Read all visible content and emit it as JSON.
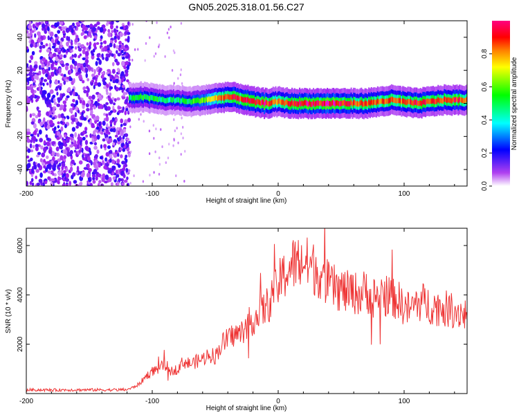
{
  "title": "GN05.2025.318.01.56.C27",
  "colors": {
    "snr_line": "#ee3333",
    "axis": "#000000",
    "background": "#ffffff"
  },
  "chart_data": [
    {
      "type": "heatmap",
      "xlabel": "Height of straight line (km)",
      "ylabel": "Frequency (Hz)",
      "xlim": [
        -200,
        150
      ],
      "ylim": [
        -50,
        50
      ],
      "xticks": [
        -200,
        -100,
        0,
        100
      ],
      "yticks": [
        -40,
        -20,
        0,
        20,
        40
      ],
      "colorbar": {
        "label": "Normalized spectral amplitude",
        "range": [
          0,
          1
        ],
        "ticks": [
          "0.0",
          "0.2",
          "0.4",
          "0.6",
          "0.8"
        ],
        "colormap": [
          "#ffffff",
          "#a020f0",
          "#0000ff",
          "#00ffff",
          "#00ff00",
          "#ffff00",
          "#ff8000",
          "#ff0000",
          "#ff00ff"
        ]
      },
      "noise_region_km": [
        -200,
        -118
      ],
      "ridge": {
        "x": [
          -118,
          -110,
          -100,
          -90,
          -80,
          -70,
          -60,
          -50,
          -40,
          -30,
          -20,
          -10,
          0,
          10,
          20,
          30,
          40,
          50,
          60,
          70,
          80,
          90,
          100,
          110,
          120,
          130,
          140,
          150
        ],
        "freq": [
          3,
          4,
          3,
          2,
          2,
          1,
          2,
          3,
          4,
          3,
          1,
          0,
          1,
          0,
          0,
          0,
          0,
          0,
          0,
          0,
          1,
          2,
          1,
          0,
          1,
          2,
          2,
          2
        ],
        "amplitude": [
          0.45,
          0.5,
          0.5,
          0.45,
          0.45,
          0.5,
          0.55,
          0.7,
          0.85,
          0.85,
          0.9,
          0.9,
          0.75,
          0.9,
          0.9,
          0.9,
          0.9,
          0.9,
          0.85,
          0.8,
          0.8,
          0.85,
          0.8,
          0.9,
          0.85,
          0.85,
          0.85,
          0.85
        ]
      }
    },
    {
      "type": "line",
      "xlabel": "Height of straight line (km)",
      "ylabel": "SNR (10 * v/v)",
      "xlim": [
        -200,
        150
      ],
      "ylim": [
        0,
        6700
      ],
      "xticks": [
        -200,
        -100,
        0,
        100
      ],
      "yticks": [
        2000,
        4000,
        6000
      ],
      "series": [
        {
          "x": [
            -200,
            -190,
            -180,
            -170,
            -160,
            -150,
            -140,
            -130,
            -120,
            -115,
            -110,
            -105,
            -100,
            -95,
            -90,
            -85,
            -80,
            -75,
            -70,
            -65,
            -60,
            -55,
            -50,
            -45,
            -40,
            -35,
            -30,
            -25,
            -20,
            -15,
            -10,
            -5,
            0,
            5,
            10,
            15,
            20,
            25,
            30,
            35,
            40,
            45,
            50,
            55,
            60,
            65,
            70,
            75,
            80,
            85,
            90,
            95,
            100,
            105,
            110,
            115,
            120,
            125,
            130,
            135,
            140,
            145,
            150
          ],
          "y": [
            150,
            150,
            140,
            150,
            150,
            150,
            150,
            150,
            160,
            250,
            400,
            700,
            900,
            1000,
            1200,
            900,
            1000,
            1300,
            1200,
            1300,
            1400,
            1600,
            1500,
            2000,
            2200,
            2400,
            2400,
            2800,
            3000,
            3200,
            3500,
            3800,
            4400,
            4800,
            5200,
            5300,
            5300,
            5200,
            5000,
            4800,
            4400,
            4300,
            4200,
            4100,
            4100,
            4000,
            4200,
            3900,
            4000,
            4000,
            3900,
            3800,
            3500,
            3400,
            3700,
            3700,
            3600,
            3500,
            3500,
            3400,
            3400,
            3300,
            3200
          ]
        }
      ]
    }
  ]
}
